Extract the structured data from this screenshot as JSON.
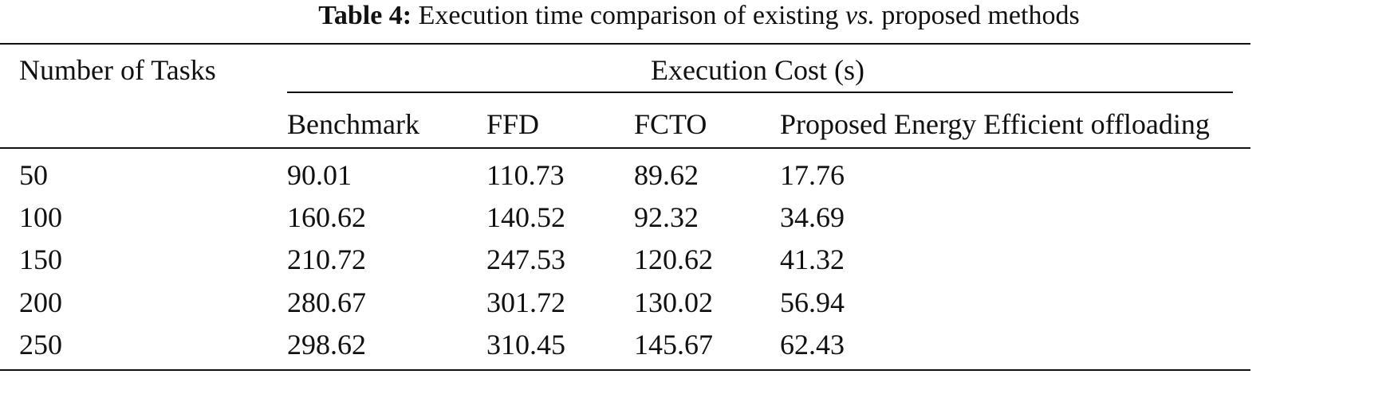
{
  "caption": {
    "label": "Table 4:",
    "text_before": "Execution time comparison of existing ",
    "italic": "vs.",
    "text_after": " proposed methods"
  },
  "header": {
    "row_label": "Number of Tasks",
    "group_label": "Execution Cost (s)",
    "columns": [
      "Benchmark",
      "FFD",
      "FCTO",
      "Proposed Energy Efficient offloading"
    ]
  },
  "rows": [
    {
      "tasks": "50",
      "values": [
        "90.01",
        "110.73",
        "89.62",
        "17.76"
      ]
    },
    {
      "tasks": "100",
      "values": [
        "160.62",
        "140.52",
        "92.32",
        "34.69"
      ]
    },
    {
      "tasks": "150",
      "values": [
        "210.72",
        "247.53",
        "120.62",
        "41.32"
      ]
    },
    {
      "tasks": "200",
      "values": [
        "280.67",
        "301.72",
        "130.02",
        "56.94"
      ]
    },
    {
      "tasks": "250",
      "values": [
        "298.62",
        "310.45",
        "145.67",
        "62.43"
      ]
    }
  ]
}
